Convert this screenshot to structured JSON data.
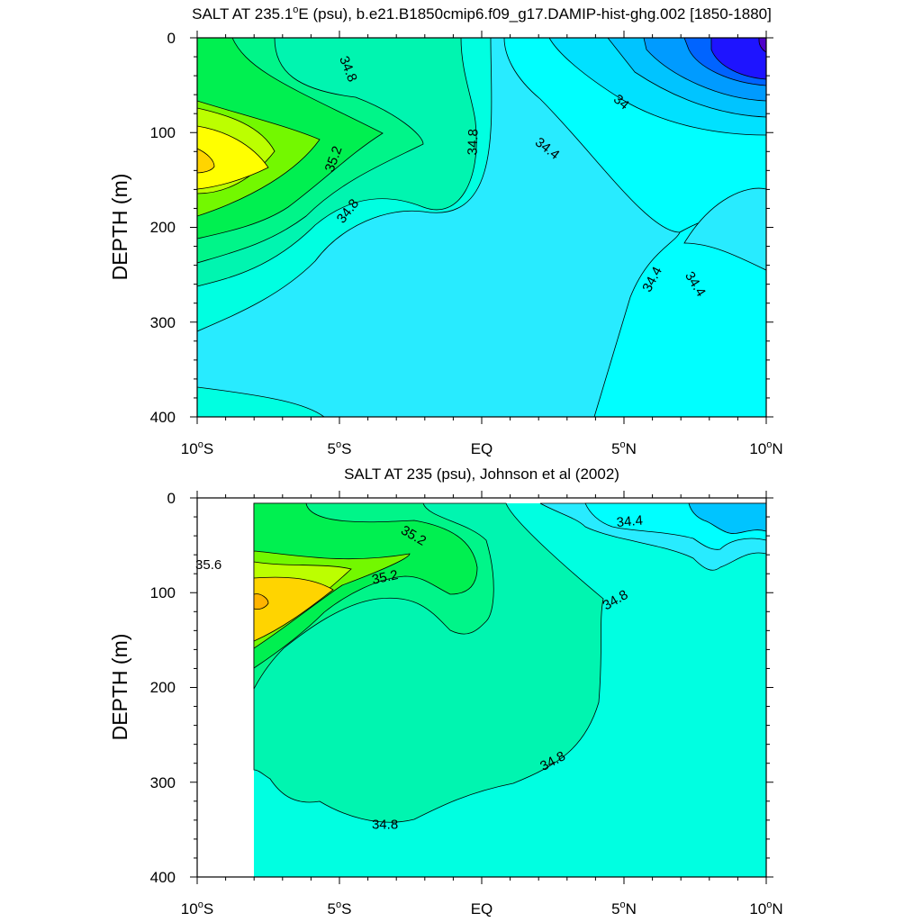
{
  "chart_data": [
    {
      "type": "heatmap",
      "subtype": "filled-contour",
      "title": "SALT AT 235.1°E (psu), b.e21.B1850cmip6.f09_g17.DAMIP-hist-ghg.002 [1850-1880]",
      "title_parts": {
        "pre": "SALT AT 235.1",
        "sup": "o",
        "post": "E (psu), b.e21.B1850cmip6.f09_g17.DAMIP-hist-ghg.002 [1850-1880]"
      },
      "xlabel": "",
      "ylabel": "DEPTH (m)",
      "xlim": [
        -10,
        10
      ],
      "ylim": [
        400,
        0
      ],
      "x_ticks": [
        -10,
        -5,
        0,
        5,
        10
      ],
      "x_tick_labels": [
        {
          "num": "10",
          "deg": "o",
          "hemi": "S"
        },
        {
          "num": "5",
          "deg": "o",
          "hemi": "S"
        },
        {
          "num": "EQ",
          "deg": "",
          "hemi": ""
        },
        {
          "num": "5",
          "deg": "o",
          "hemi": "N"
        },
        {
          "num": "10",
          "deg": "o",
          "hemi": "N"
        }
      ],
      "y_ticks": [
        0,
        100,
        200,
        300,
        400
      ],
      "y_tick_labels": [
        "0",
        "100",
        "200",
        "300",
        "400"
      ],
      "contour_interval": 0.2,
      "contour_labels": [
        {
          "text": "34.8",
          "x": -4.7,
          "y": 33,
          "angle": 68
        },
        {
          "text": "34.8",
          "x": -0.3,
          "y": 110,
          "angle": -88
        },
        {
          "text": "35.2",
          "x": -5.2,
          "y": 128,
          "angle": -70
        },
        {
          "text": "34.8",
          "x": -4.7,
          "y": 183,
          "angle": -52
        },
        {
          "text": "34",
          "x": 4.9,
          "y": 68,
          "angle": 40
        },
        {
          "text": "34.4",
          "x": 2.3,
          "y": 117,
          "angle": 38
        },
        {
          "text": "34.4",
          "x": 6.0,
          "y": 255,
          "angle": -62
        },
        {
          "text": "34.4",
          "x": 7.5,
          "y": 260,
          "angle": 58
        }
      ],
      "salinity_extremes": {
        "max_approx": 35.9,
        "min_approx": 33.4
      }
    },
    {
      "type": "heatmap",
      "subtype": "filled-contour",
      "title": "SALT AT 235 (psu), Johnson et al (2002)",
      "xlabel": "",
      "ylabel": "DEPTH (m)",
      "xlim": [
        -10,
        10
      ],
      "ylim": [
        400,
        0
      ],
      "x_ticks": [
        -10,
        -5,
        0,
        5,
        10
      ],
      "x_tick_labels": [
        {
          "num": "10",
          "deg": "o",
          "hemi": "S"
        },
        {
          "num": "5",
          "deg": "o",
          "hemi": "S"
        },
        {
          "num": "EQ",
          "deg": "",
          "hemi": ""
        },
        {
          "num": "5",
          "deg": "o",
          "hemi": "N"
        },
        {
          "num": "10",
          "deg": "o",
          "hemi": "N"
        }
      ],
      "y_ticks": [
        0,
        100,
        200,
        300,
        400
      ],
      "y_tick_labels": [
        "0",
        "100",
        "200",
        "300",
        "400"
      ],
      "data_x_range": [
        -8,
        10
      ],
      "contour_interval": 0.2,
      "contour_labels": [
        {
          "text": "35.6",
          "x": -9.6,
          "y": 71,
          "angle": 0
        },
        {
          "text": "35.2",
          "x": -2.4,
          "y": 40,
          "angle": 30
        },
        {
          "text": "35.2",
          "x": -3.4,
          "y": 84,
          "angle": -12
        },
        {
          "text": "34.4",
          "x": 5.2,
          "y": 25,
          "angle": -5
        },
        {
          "text": "34.8",
          "x": 4.7,
          "y": 108,
          "angle": -30
        },
        {
          "text": "34.8",
          "x": 2.5,
          "y": 278,
          "angle": -28
        },
        {
          "text": "34.8",
          "x": -3.4,
          "y": 345,
          "angle": 0
        }
      ],
      "salinity_extremes": {
        "max_approx": 35.8,
        "min_approx": 34.0
      }
    }
  ]
}
